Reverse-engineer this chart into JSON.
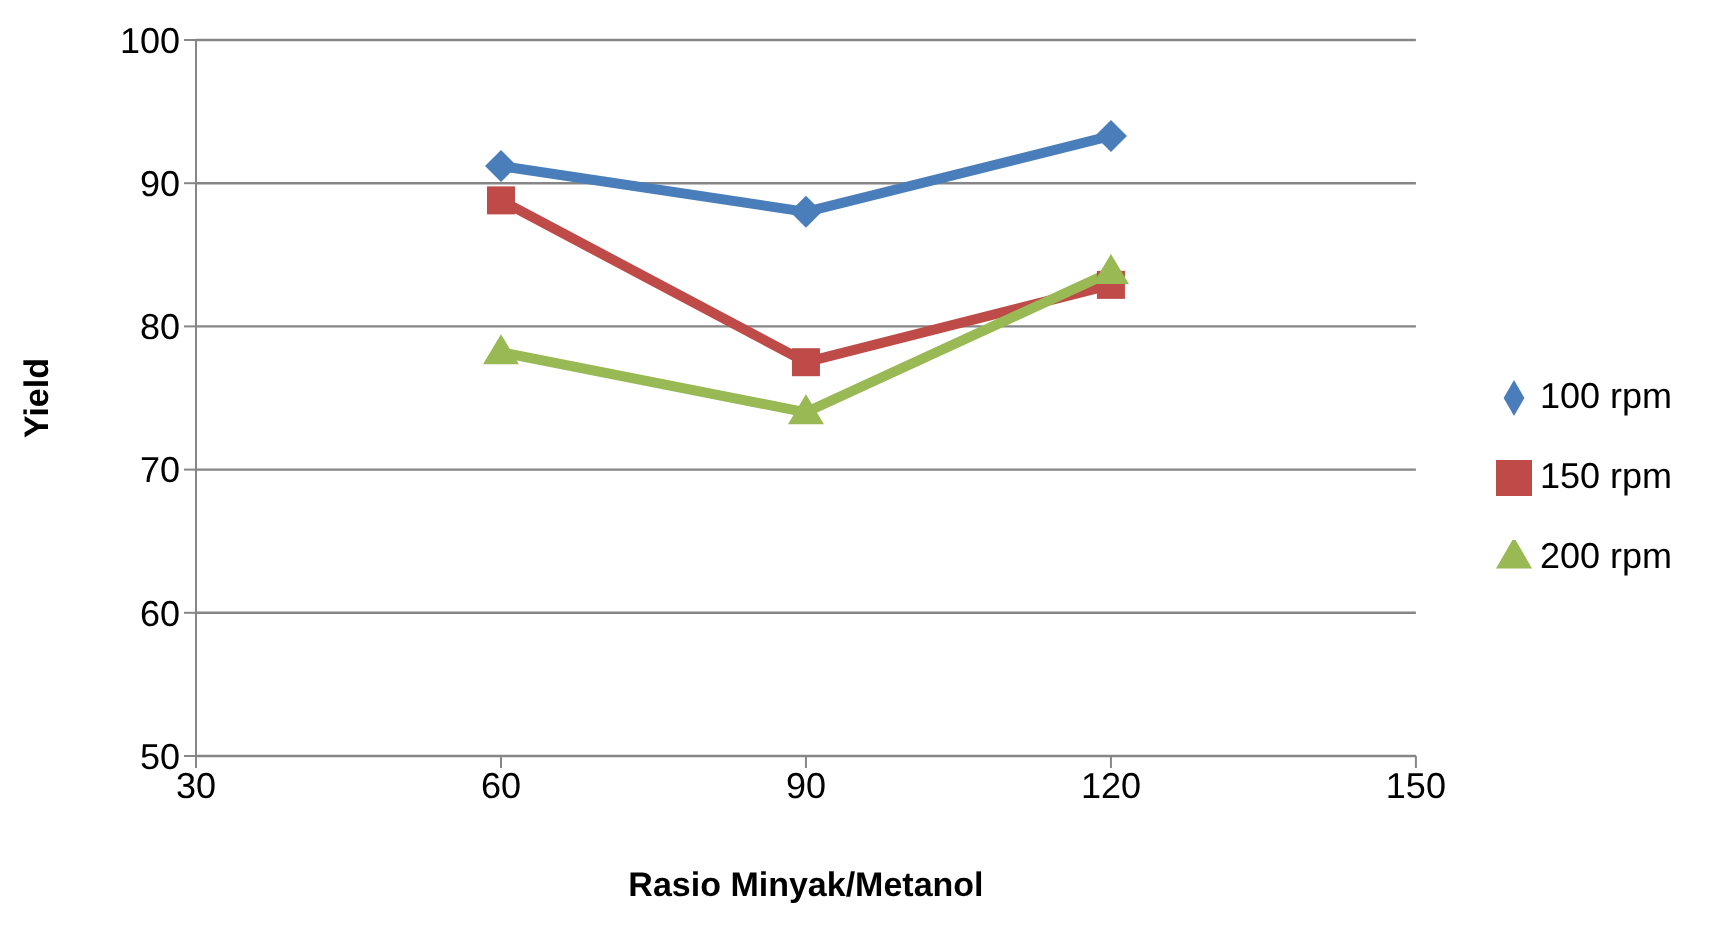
{
  "chart_data": {
    "type": "line",
    "xlabel": "Rasio Minyak/Metanol",
    "ylabel": "Yield",
    "x": [
      60,
      90,
      120
    ],
    "series": [
      {
        "name": "100 rpm",
        "color": "#4a7ebb",
        "marker": "diamond",
        "values": [
          91.2,
          88.0,
          93.3
        ]
      },
      {
        "name": "150 rpm",
        "color": "#be4b48",
        "marker": "square",
        "values": [
          88.8,
          77.5,
          82.9
        ]
      },
      {
        "name": "200 rpm",
        "color": "#98b954",
        "marker": "triangle",
        "values": [
          78.2,
          74.0,
          83.8
        ]
      }
    ],
    "xlim": [
      30,
      150
    ],
    "xticks": [
      30,
      60,
      90,
      120,
      150
    ],
    "ylim": [
      50,
      100
    ],
    "yticks": [
      50,
      60,
      70,
      80,
      90,
      100
    ],
    "grid": "y",
    "legend": "right",
    "line_style": "solid"
  }
}
